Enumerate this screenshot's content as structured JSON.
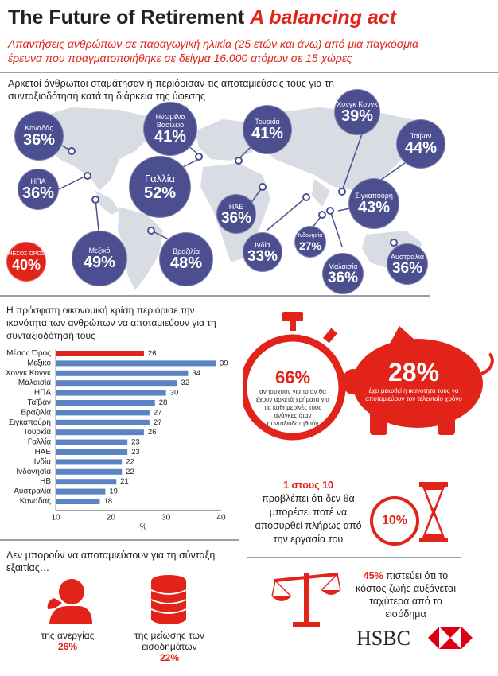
{
  "header": {
    "title_main": "The Future of Retirement",
    "title_accent": "A balancing act",
    "subtitle": "Απαντήσεις ανθρώπων σε παραγωγική ηλικία (25 ετών και άνω) από μια παγκόσμια έρευνα που πραγματοποιήθηκε σε δείγμα 16.000 ατόμων σε 15 χώρες"
  },
  "map_section": {
    "heading": "Αρκετοί άνθρωποι σταμάτησαν ή περιόρισαν τις αποταμιεύσεις τους για τη συνταξιοδότησή κατά τη διάρκεια της ύφεσης",
    "bubbles": [
      {
        "name": "Καναδάς",
        "value": "36%"
      },
      {
        "name": "Ηνωμένο Βασίλειο",
        "value": "41%"
      },
      {
        "name": "Τουρκία",
        "value": "41%"
      },
      {
        "name": "Χονγκ Κονγκ",
        "value": "39%"
      },
      {
        "name": "Ταϊβάν",
        "value": "44%"
      },
      {
        "name": "ΗΠΑ",
        "value": "36%"
      },
      {
        "name": "Γαλλία",
        "value": "52%"
      },
      {
        "name": "ΗΑΕ",
        "value": "36%"
      },
      {
        "name": "Σιγκαπούρη",
        "value": "43%"
      },
      {
        "name": "ΜΕΣΟΣ ΟΡΟΣ",
        "value": "40%"
      },
      {
        "name": "Μεξικό",
        "value": "49%"
      },
      {
        "name": "Βραζιλία",
        "value": "48%"
      },
      {
        "name": "Ινδία",
        "value": "33%"
      },
      {
        "name": "Ινδονησία",
        "value": "27%"
      },
      {
        "name": "Μαλαισία",
        "value": "36%"
      },
      {
        "name": "Αυστραλία",
        "value": "36%"
      }
    ]
  },
  "chart_section": {
    "heading": "Η πρόσφατη οικονομική κρίση περιόρισε την ικανότητα των ανθρώπων να αποταμιεύουν για τη συνταξιοδότησή τους"
  },
  "chart_data": {
    "type": "bar",
    "orientation": "horizontal",
    "categories": [
      "Μέσος Όρος",
      "Μεξικό",
      "Χονγκ Κονγκ",
      "Μαλαισία",
      "ΗΠΑ",
      "Ταϊβάν",
      "Βραζιλία",
      "Σιγκαπούρη",
      "Τουρκία",
      "Γαλλία",
      "ΗΑΕ",
      "Ινδία",
      "Ινδονησία",
      "ΗΒ",
      "Αυστραλία",
      "Καναδάς"
    ],
    "values": [
      26,
      39,
      34,
      32,
      30,
      28,
      27,
      27,
      26,
      23,
      23,
      22,
      22,
      21,
      19,
      18
    ],
    "highlight_index": 0,
    "xlim": [
      10,
      40
    ],
    "xticks": [
      "10",
      "20",
      "30",
      "40"
    ],
    "xlabel": "%",
    "colors": {
      "bar": "#5b84c4",
      "highlight": "#e2231a"
    }
  },
  "stats": {
    "stopwatch_value": "66%",
    "stopwatch_text": "ανησυχούν για το αν θα έχουν αρκετά χρήματα για τις καθημερινές τους ανάγκες όταν συνταξιοδοτηθούν",
    "piggy_value": "28%",
    "piggy_text": "έχει μειωθεί η ικανότητα τους να αποταμιεύουν τον τελευταίο χρόνο",
    "one_in_ten_strong": "1 στους 10",
    "one_in_ten_text": "προβλέπει ότι δεν θα μπορέσει ποτέ να αποσυρθεί πλήρως από την εργασία του",
    "hourglass_value": "10%",
    "cost_value": "45%",
    "cost_text": "πιστεύει ότι το κόστος ζωής αυξάνεται ταχύτερα από το εισόδημα"
  },
  "bottom": {
    "heading": "Δεν μπορούν να αποταμιεύσουν για τη σύνταξη εξαιτίας…",
    "unemployment_label": "της ανεργίας",
    "unemployment_value": "26%",
    "income_label": "της μείωσης των εισοδημάτων",
    "income_value": "22%"
  },
  "brand": {
    "name": "HSBC",
    "color": "#db0011"
  },
  "colors": {
    "accent": "#e2231a",
    "bubble": "#4c4f8f",
    "map": "#d9dce3"
  }
}
